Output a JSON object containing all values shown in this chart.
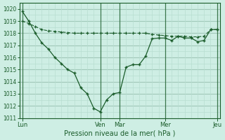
{
  "bg_color": "#ceeee4",
  "grid_major_color": "#a0c8b8",
  "grid_minor_color": "#b8ddd0",
  "line_color": "#1a5c2a",
  "title": "Pression niveau de la mer( hPa )",
  "ylim": [
    1011.0,
    1020.5
  ],
  "yticks": [
    1011,
    1012,
    1013,
    1014,
    1015,
    1016,
    1017,
    1018,
    1019,
    1020
  ],
  "xtick_labels": [
    "Lun",
    "Ven",
    "Mar",
    "Mer",
    "Jeu"
  ],
  "xtick_positions": [
    0.0,
    0.4,
    0.5,
    0.733,
    1.0
  ],
  "vline_positions": [
    0.0,
    0.4,
    0.5,
    0.733,
    1.0
  ],
  "line1_x": [
    0.0,
    0.033,
    0.067,
    0.1,
    0.133,
    0.167,
    0.2,
    0.233,
    0.267,
    0.3,
    0.333,
    0.367,
    0.4,
    0.433,
    0.467,
    0.5,
    0.533,
    0.567,
    0.6,
    0.633,
    0.667,
    0.7,
    0.733,
    0.767,
    0.8,
    0.833,
    0.867,
    0.9,
    0.933,
    0.967,
    1.0
  ],
  "line1_y": [
    1019.8,
    1019.0,
    1018.0,
    1017.2,
    1016.7,
    1016.0,
    1015.5,
    1015.0,
    1014.7,
    1013.5,
    1013.0,
    1011.8,
    1011.5,
    1012.5,
    1013.0,
    1013.1,
    1015.2,
    1015.4,
    1015.4,
    1016.1,
    1017.55,
    1017.6,
    1017.6,
    1017.4,
    1017.75,
    1017.6,
    1017.6,
    1017.3,
    1017.4,
    1018.3,
    1018.3
  ],
  "line2_x": [
    0.0,
    0.033,
    0.067,
    0.1,
    0.133,
    0.167,
    0.2,
    0.233,
    0.267,
    0.3,
    0.333,
    0.367,
    0.4,
    0.433,
    0.467,
    0.5,
    0.533,
    0.567,
    0.6,
    0.633,
    0.667,
    0.7,
    0.733,
    0.767,
    0.8,
    0.833,
    0.867,
    0.9,
    0.933,
    0.967,
    1.0
  ],
  "line2_y": [
    1019.0,
    1018.8,
    1018.55,
    1018.3,
    1018.2,
    1018.15,
    1018.1,
    1018.05,
    1018.0,
    1018.0,
    1018.0,
    1018.0,
    1018.0,
    1018.0,
    1018.0,
    1018.0,
    1018.0,
    1018.0,
    1018.0,
    1018.0,
    1017.9,
    1017.85,
    1017.8,
    1017.75,
    1017.75,
    1017.75,
    1017.7,
    1017.7,
    1017.75,
    1018.3,
    1018.3
  ]
}
